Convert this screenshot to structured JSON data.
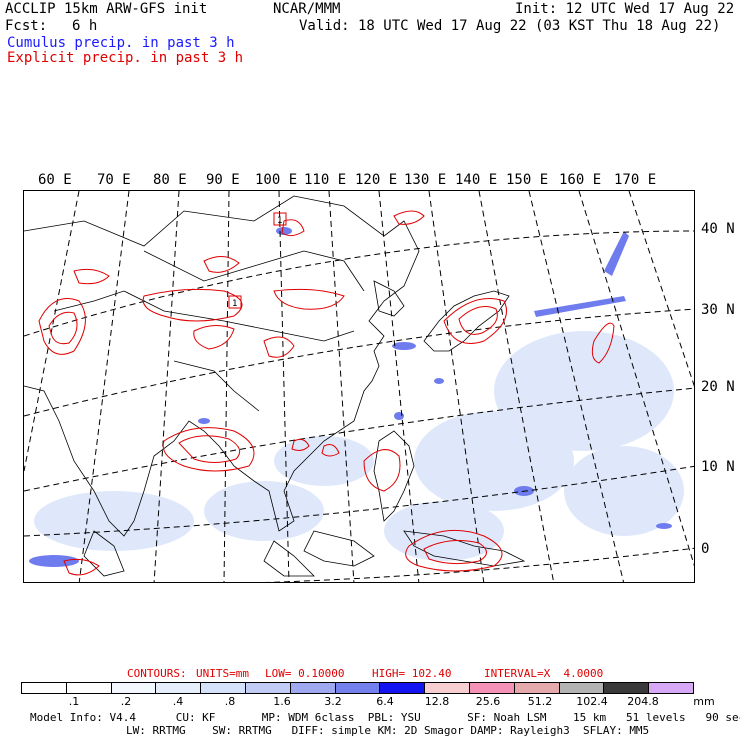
{
  "header": {
    "left_line1": "ACCLIP 15km ARW-GFS init",
    "left_line2_label": "Fcst:",
    "left_line2_value": "6 h",
    "center": "NCAR/MMM",
    "init": "Init: 12 UTC Wed 17 Aug 22",
    "valid": "Valid: 18 UTC Wed 17 Aug 22 (03 KST Thu 18 Aug 22)",
    "legend_cumulus": "Cumulus precip. in past 3 h",
    "legend_explicit": "Explicit precip. in past 3 h"
  },
  "map": {
    "longitude_labels": [
      "60 E",
      "70 E",
      "80 E",
      "90 E",
      "100 E",
      "110 E",
      "120 E",
      "130 E",
      "140 E",
      "150 E",
      "160 E",
      "170 E"
    ],
    "latitude_labels": [
      "40 N",
      "30 N",
      "20 N",
      "10 N",
      "0"
    ],
    "marker_label": "1",
    "colors": {
      "cumulus": "#1a1aff",
      "explicit": "#e00000"
    }
  },
  "contours_info": {
    "label": "CONTOURS:",
    "units": "UNITS=mm",
    "low": "LOW= 0.10000",
    "high": "HIGH= 102.40",
    "interval": "INTERVAL=X  4.0000"
  },
  "colorbar": {
    "colors": [
      "#ffffff",
      "#ffffff",
      "#f4f8ff",
      "#e6eefc",
      "#d6e2fa",
      "#c2cdf5",
      "#9fa9f0",
      "#7480eb",
      "#1414f0",
      "#f8cfd0",
      "#f592b8",
      "#e4a9aa",
      "#b3b3b3",
      "#3a3a3a",
      "#d6a8f5"
    ],
    "ticks": [
      ".1",
      ".2",
      ".4",
      ".8",
      "1.6",
      "3.2",
      "6.4",
      "12.8",
      "25.6",
      "51.2",
      "102.4",
      "204.8"
    ],
    "unit": "mm"
  },
  "footer": {
    "line1": "Model Info: V4.4      CU: KF       MP: WDM 6class  PBL: YSU       SF: Noah LSM    15 km   51 levels   90 sec",
    "line2": "LW: RRTMG    SW: RRTMG   DIFF: simple KM: 2D Smagor DAMP: Rayleigh3  SFLAY: MM5"
  }
}
